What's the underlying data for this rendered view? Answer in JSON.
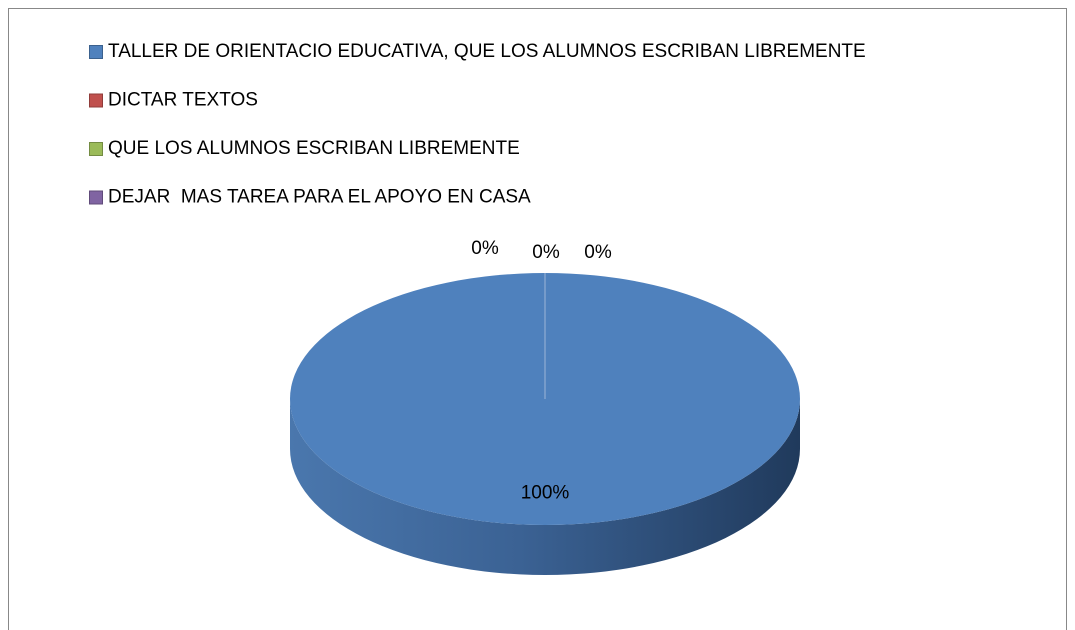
{
  "chart_data": {
    "type": "pie",
    "categories": [
      "TALLER DE ORIENTACIO EDUCATIVA, QUE LOS ALUMNOS ESCRIBAN LIBREMENTE",
      "DICTAR TEXTOS",
      "QUE LOS ALUMNOS ESCRIBAN LIBREMENTE",
      "DEJAR  MAS TAREA PARA EL APOYO EN CASA"
    ],
    "values": [
      100,
      0,
      0,
      0
    ],
    "value_labels": [
      "100%",
      "0%",
      "0%",
      "0%"
    ],
    "colors": [
      "#4f81bd",
      "#c0504d",
      "#9bbb59",
      "#8064a2"
    ],
    "legend": "top-left"
  }
}
